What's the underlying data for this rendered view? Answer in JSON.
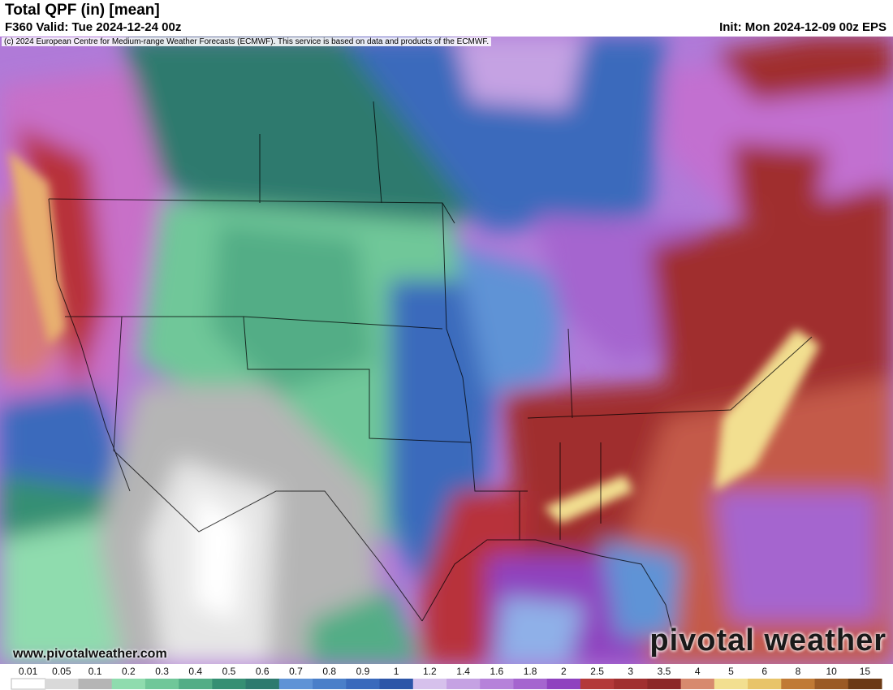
{
  "header": {
    "title": "Total QPF (in) [mean]",
    "valid": "F360 Valid: Tue 2024-12-24 00z",
    "init": "Init: Mon 2024-12-09 00z EPS",
    "credit": "(c) 2024 European Centre for Medium-range Weather Forecasts (ECMWF). This service is based on data and products of the ECMWF."
  },
  "website": "www.pivotalweather.com",
  "watermark": "pivotal weather",
  "colorbar": {
    "labels": [
      "0.01",
      "0.05",
      "0.1",
      "0.2",
      "0.3",
      "0.4",
      "0.5",
      "0.6",
      "0.7",
      "0.8",
      "0.9",
      "1",
      "1.2",
      "1.4",
      "1.6",
      "1.8",
      "2",
      "2.5",
      "3",
      "3.5",
      "4",
      "5",
      "6",
      "8",
      "10",
      "15"
    ],
    "colors": [
      "#ffffff",
      "#d9d9d9",
      "#b5b5b5",
      "#8fdcae",
      "#70c799",
      "#53ad86",
      "#358f73",
      "#2d7a6e",
      "#5f93d6",
      "#4a7fc9",
      "#3a6abc",
      "#2c55a8",
      "#d6c1ec",
      "#c5a2e3",
      "#b682da",
      "#a565cf",
      "#8f42bf",
      "#b33a3a",
      "#a02f2f",
      "#8c2727",
      "#d78a6e",
      "#f2df90",
      "#e8c46a",
      "#c07a35",
      "#9a5a25",
      "#6b3a15"
    ]
  }
}
